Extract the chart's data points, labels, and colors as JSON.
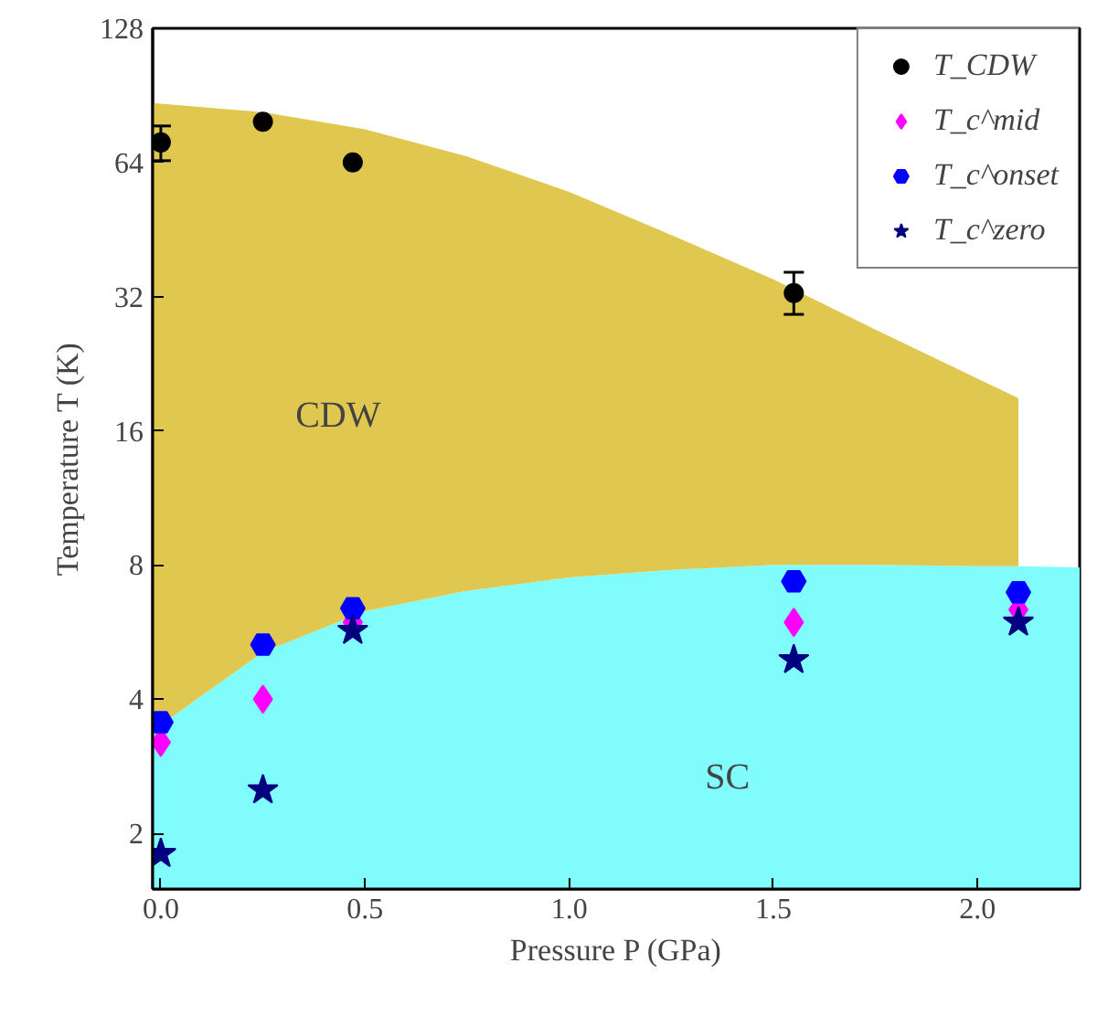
{
  "chart_data": {
    "type": "scatter",
    "xlabel": "Pressure P (GPa)",
    "ylabel": "Temperature T (K)",
    "log": "y",
    "grid": false,
    "legend": "top right",
    "stacked": true,
    "xlim": [
      -0.02,
      2.25
    ],
    "ylim": [
      1.5,
      128
    ],
    "xticks": [
      {
        "value": 0,
        "label": "0.0"
      },
      0.5,
      {
        "value": 1,
        "label": "1.0"
      },
      1.5,
      {
        "value": 2,
        "label": "2.0"
      }
    ],
    "yticks": [
      2,
      4,
      8,
      16,
      32,
      64,
      128
    ],
    "annotations": [
      "CDW",
      "SC"
    ],
    "series": [
      {
        "type": "area",
        "color": "#80fcfc",
        "x": [
          -0.02,
          0.25,
          0.5,
          0.75,
          1.0,
          1.25,
          1.5,
          1.75,
          2.0,
          2.1,
          2.25
        ],
        "values": [
          3.4,
          5.1,
          6.3,
          7.0,
          7.5,
          7.8,
          8.0,
          8.0,
          7.95,
          7.95,
          7.9
        ]
      },
      {
        "type": "area",
        "color": "#e0c850",
        "x": [
          -0.02,
          0.25,
          0.5,
          0.75,
          1.0,
          1.25,
          1.5,
          1.75,
          2.0,
          2.1
        ],
        "values": [
          83.6,
          77.9,
          69.7,
          59,
          47.5,
          36.2,
          27,
          19,
          13,
          11
        ]
      },
      {
        "name": "T_CDW",
        "marker": "circle",
        "color": "#000000",
        "x": [
          0,
          0.25,
          0.47,
          1.55
        ],
        "values": [
          71,
          79,
          64,
          32.6
        ],
        "errors": [
          [
            64.6,
            77.3
          ],
          null,
          null,
          [
            29.2,
            36.3
          ]
        ]
      },
      {
        "name": "T_c^mid",
        "marker": "diamond",
        "color": "#ff00ff",
        "x": [
          0,
          0.25,
          0.47,
          1.55,
          2.1
        ],
        "values": [
          3.2,
          4.0,
          5.95,
          5.95,
          6.35
        ]
      },
      {
        "name": "T_c^onset",
        "color": "#0000ff",
        "x": [
          0,
          0.25,
          0.47,
          1.55,
          2.1
        ],
        "values": [
          3.55,
          5.3,
          6.4,
          7.35,
          6.95
        ]
      },
      {
        "name": "T_c^zero",
        "marker": "star",
        "color": "#000080",
        "x": [
          0,
          0.25,
          0.47,
          1.55,
          2.1
        ],
        "values": [
          1.8,
          2.5,
          5.7,
          4.9,
          5.95
        ]
      }
    ]
  }
}
